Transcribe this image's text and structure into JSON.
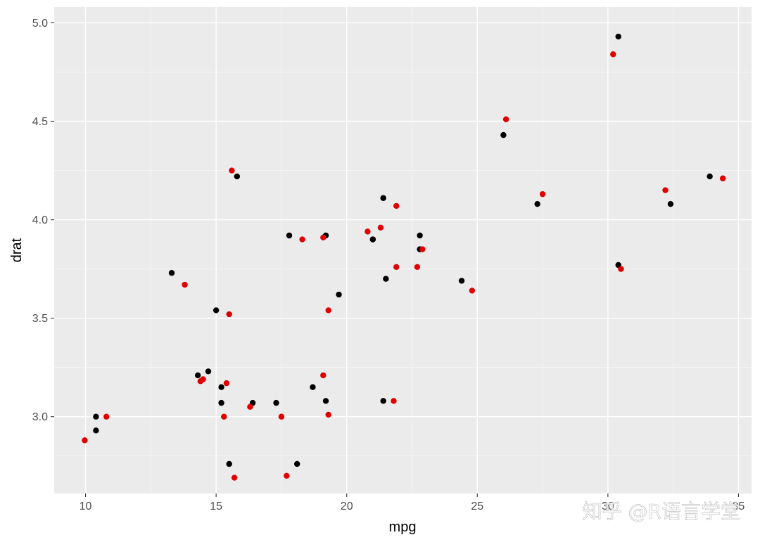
{
  "chart_data": {
    "type": "scatter",
    "xlabel": "mpg",
    "ylabel": "drat",
    "xlim": [
      8.8,
      35.5
    ],
    "ylim": [
      2.61,
      5.08
    ],
    "x_ticks": [
      10,
      15,
      20,
      25,
      30,
      35
    ],
    "x_tick_labels": [
      "10",
      "15",
      "20",
      "25",
      "30",
      "35"
    ],
    "y_ticks": [
      3.0,
      3.5,
      4.0,
      4.5,
      5.0
    ],
    "y_tick_labels": [
      "3.0",
      "3.5",
      "4.0",
      "4.5",
      "5.0"
    ],
    "grid": true,
    "panel_background": "#ebebeb",
    "series": [
      {
        "color": "#000000",
        "points": [
          [
            21.0,
            3.9
          ],
          [
            21.0,
            3.9
          ],
          [
            22.8,
            3.85
          ],
          [
            21.4,
            3.08
          ],
          [
            18.7,
            3.15
          ],
          [
            18.1,
            2.76
          ],
          [
            14.3,
            3.21
          ],
          [
            24.4,
            3.69
          ],
          [
            22.8,
            3.92
          ],
          [
            19.2,
            3.92
          ],
          [
            17.8,
            3.92
          ],
          [
            16.4,
            3.07
          ],
          [
            17.3,
            3.07
          ],
          [
            15.2,
            3.07
          ],
          [
            10.4,
            2.93
          ],
          [
            10.4,
            3.0
          ],
          [
            14.7,
            3.23
          ],
          [
            32.4,
            4.08
          ],
          [
            30.4,
            4.93
          ],
          [
            33.9,
            4.22
          ],
          [
            21.5,
            3.7
          ],
          [
            15.5,
            2.76
          ],
          [
            15.2,
            3.15
          ],
          [
            13.3,
            3.73
          ],
          [
            19.2,
            3.08
          ],
          [
            27.3,
            4.08
          ],
          [
            26.0,
            4.43
          ],
          [
            30.4,
            3.77
          ],
          [
            15.8,
            4.22
          ],
          [
            19.7,
            3.62
          ],
          [
            15.0,
            3.54
          ],
          [
            21.4,
            4.11
          ]
        ]
      },
      {
        "color": "#e00000",
        "points": [
          [
            20.8,
            3.94
          ],
          [
            21.3,
            3.96
          ],
          [
            22.9,
            3.85
          ],
          [
            21.8,
            3.08
          ],
          [
            19.1,
            3.21
          ],
          [
            17.7,
            2.7
          ],
          [
            14.4,
            3.18
          ],
          [
            24.8,
            3.64
          ],
          [
            22.7,
            3.76
          ],
          [
            19.3,
            3.54
          ],
          [
            18.3,
            3.9
          ],
          [
            16.3,
            3.05
          ],
          [
            17.5,
            3.0
          ],
          [
            15.3,
            3.0
          ],
          [
            9.97,
            2.88
          ],
          [
            10.8,
            3.0
          ],
          [
            14.5,
            3.19
          ],
          [
            32.2,
            4.15
          ],
          [
            30.2,
            4.84
          ],
          [
            34.4,
            4.21
          ],
          [
            21.9,
            3.76
          ],
          [
            15.7,
            2.69
          ],
          [
            15.4,
            3.17
          ],
          [
            13.8,
            3.67
          ],
          [
            19.3,
            3.01
          ],
          [
            27.5,
            4.13
          ],
          [
            26.1,
            4.51
          ],
          [
            30.5,
            3.75
          ],
          [
            15.6,
            4.25
          ],
          [
            19.1,
            3.91
          ],
          [
            15.5,
            3.52
          ],
          [
            21.9,
            4.07
          ]
        ]
      }
    ]
  },
  "watermark": {
    "text": "知乎 @R语言学堂"
  }
}
